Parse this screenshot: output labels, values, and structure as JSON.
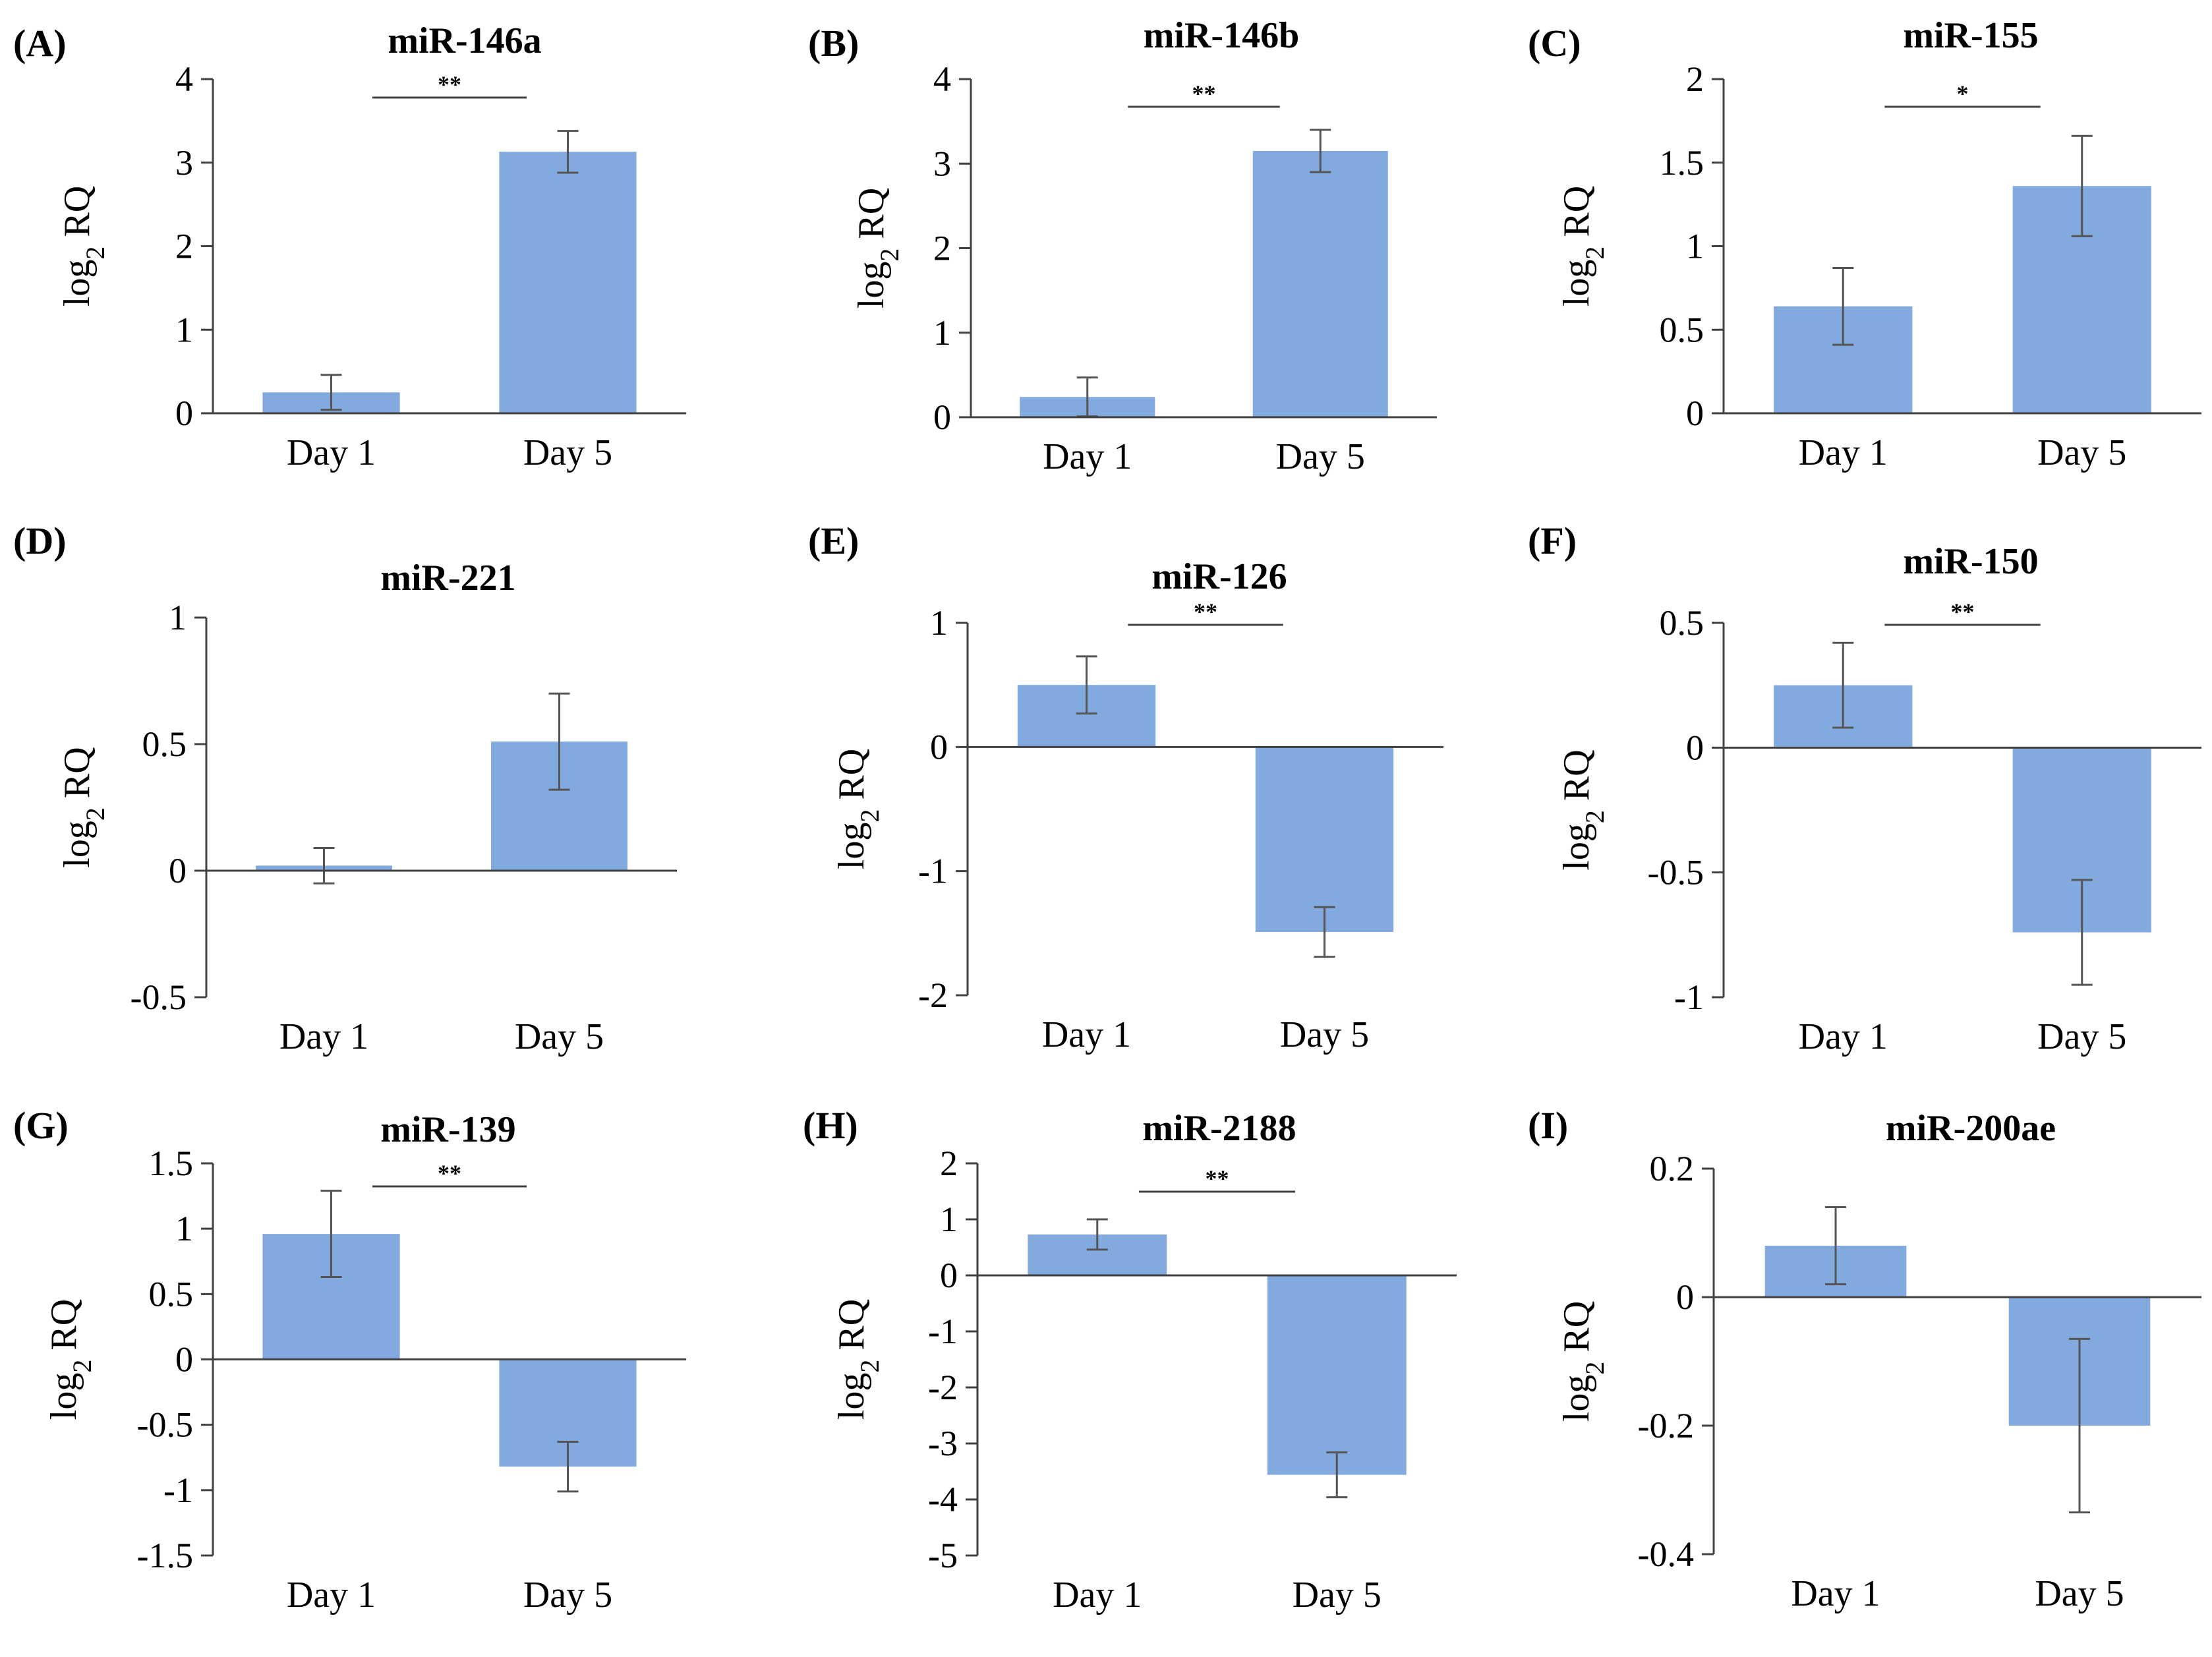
{
  "figure": {
    "bar_color": "#82AADF",
    "ylabel_main": "log",
    "ylabel_sub": "2",
    "ylabel_tail": " RQ"
  },
  "chart_data": [
    {
      "type": "bar",
      "panel": "(A)",
      "title": "miR-146a",
      "categories": [
        "Day 1",
        "Day 5"
      ],
      "values": [
        0.25,
        3.13
      ],
      "errors": [
        0.21,
        0.25
      ],
      "ylim": [
        0,
        4
      ],
      "yticks": [
        "0",
        "1",
        "2",
        "3",
        "4"
      ],
      "significance": "**",
      "xlabel": "",
      "ylabel": "log2 RQ",
      "grid": false
    },
    {
      "type": "bar",
      "panel": "(B)",
      "title": "miR-146b",
      "categories": [
        "Day 1",
        "Day 5"
      ],
      "values": [
        0.24,
        3.15
      ],
      "errors": [
        0.23,
        0.25
      ],
      "ylim": [
        0,
        4
      ],
      "yticks": [
        "0",
        "1",
        "2",
        "3",
        "4"
      ],
      "significance": "**",
      "xlabel": "",
      "ylabel": "log2 RQ",
      "grid": false
    },
    {
      "type": "bar",
      "panel": "(C)",
      "title": "miR-155",
      "categories": [
        "Day 1",
        "Day 5"
      ],
      "values": [
        0.64,
        1.36
      ],
      "errors": [
        0.23,
        0.3
      ],
      "ylim": [
        0,
        2
      ],
      "yticks": [
        "0",
        "0.5",
        "1",
        "1.5",
        "2"
      ],
      "significance": "*",
      "xlabel": "",
      "ylabel": "log2 RQ",
      "grid": false
    },
    {
      "type": "bar",
      "panel": "(D)",
      "title": "miR-221",
      "categories": [
        "Day 1",
        "Day 5"
      ],
      "values": [
        0.02,
        0.51
      ],
      "errors": [
        0.07,
        0.19
      ],
      "ylim": [
        -0.5,
        1
      ],
      "yticks": [
        "-0.5",
        "0",
        "0.5",
        "1"
      ],
      "significance": "",
      "xlabel": "",
      "ylabel": "log2 RQ",
      "grid": false
    },
    {
      "type": "bar",
      "panel": "(E)",
      "title": "miR-126",
      "categories": [
        "Day 1",
        "Day 5"
      ],
      "values": [
        0.5,
        -1.49
      ],
      "errors": [
        0.23,
        0.2
      ],
      "ylim": [
        -2,
        1
      ],
      "yticks": [
        "-2",
        "-1",
        "0",
        "1"
      ],
      "significance": "**",
      "xlabel": "",
      "ylabel": "log2 RQ",
      "grid": false
    },
    {
      "type": "bar",
      "panel": "(F)",
      "title": "miR-150",
      "categories": [
        "Day 1",
        "Day 5"
      ],
      "values": [
        0.25,
        -0.74
      ],
      "errors": [
        0.17,
        0.21
      ],
      "ylim": [
        -1,
        0.5
      ],
      "yticks": [
        "-1",
        "-0.5",
        "0",
        "0.5"
      ],
      "significance": "**",
      "xlabel": "",
      "ylabel": "log2 RQ",
      "grid": false
    },
    {
      "type": "bar",
      "panel": "(G)",
      "title": "miR-139",
      "categories": [
        "Day 1",
        "Day 5"
      ],
      "values": [
        0.96,
        -0.82
      ],
      "errors": [
        0.33,
        0.19
      ],
      "ylim": [
        -1.5,
        1.5
      ],
      "yticks": [
        "-1.5",
        "-1",
        "-0.5",
        "0",
        "0.5",
        "1",
        "1.5"
      ],
      "significance": "**",
      "xlabel": "",
      "ylabel": "log2 RQ",
      "grid": false
    },
    {
      "type": "bar",
      "panel": "(H)",
      "title": "miR-2188",
      "categories": [
        "Day 1",
        "Day 5"
      ],
      "values": [
        0.73,
        -3.56
      ],
      "errors": [
        0.27,
        0.4
      ],
      "ylim": [
        -5,
        2
      ],
      "yticks": [
        "-5",
        "-4",
        "-3",
        "-2",
        "-1",
        "0",
        "1",
        "2"
      ],
      "significance": "**",
      "xlabel": "",
      "ylabel": "log2 RQ",
      "grid": false
    },
    {
      "type": "bar",
      "panel": "(I)",
      "title": "miR-200ae",
      "categories": [
        "Day 1",
        "Day 5"
      ],
      "values": [
        0.08,
        -0.2
      ],
      "errors": [
        0.06,
        0.135
      ],
      "ylim": [
        -0.4,
        0.2
      ],
      "yticks": [
        "-0.4",
        "-0.2",
        "0",
        "0.2"
      ],
      "significance": "",
      "xlabel": "",
      "ylabel": "log2 RQ",
      "grid": false
    }
  ]
}
